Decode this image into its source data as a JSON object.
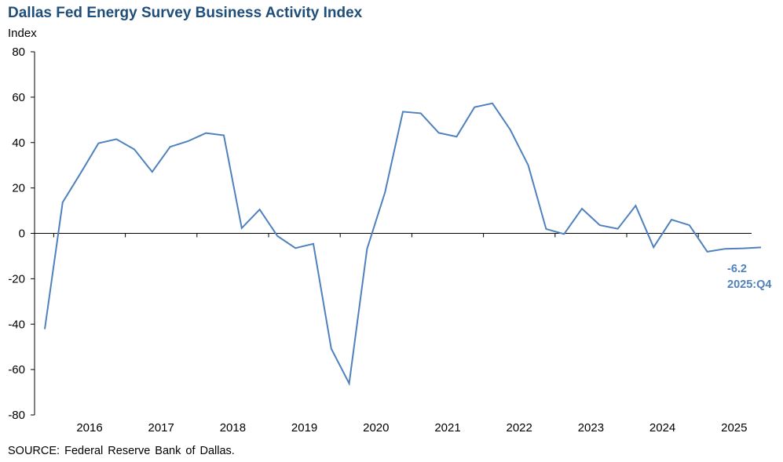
{
  "colors": {
    "title": "#1f4e79",
    "series": "#4f81bd",
    "axis": "#000000"
  },
  "chart_data": {
    "type": "line",
    "title": "Dallas Fed Energy Survey Business Activity Index",
    "ylabel": "Index",
    "xlabel": "",
    "ylim": [
      -80,
      80
    ],
    "yticks": [
      80,
      60,
      40,
      20,
      0,
      -20,
      -40,
      -60,
      -80
    ],
    "year_labels": [
      "2016",
      "2017",
      "2018",
      "2019",
      "2020",
      "2021",
      "2022",
      "2023",
      "2024",
      "2025"
    ],
    "grid": false,
    "series": [
      {
        "name": "Business Activity Index",
        "x": [
          "2015:Q4",
          "2016:Q1",
          "2016:Q2",
          "2016:Q3",
          "2016:Q4",
          "2017:Q1",
          "2017:Q2",
          "2017:Q3",
          "2017:Q4",
          "2018:Q1",
          "2018:Q2",
          "2018:Q3",
          "2018:Q4",
          "2019:Q1",
          "2019:Q2",
          "2019:Q3",
          "2019:Q4",
          "2020:Q1",
          "2020:Q2",
          "2020:Q3",
          "2020:Q4",
          "2021:Q1",
          "2021:Q2",
          "2021:Q3",
          "2021:Q4",
          "2022:Q1",
          "2022:Q2",
          "2022:Q3",
          "2022:Q4",
          "2023:Q1",
          "2023:Q2",
          "2023:Q3",
          "2023:Q4",
          "2024:Q1",
          "2024:Q2",
          "2024:Q3",
          "2024:Q4",
          "2025:Q1",
          "2025:Q2",
          "2025:Q3",
          "2025:Q4"
        ],
        "values": [
          -42.2,
          13.7,
          26.5,
          39.7,
          41.5,
          37.0,
          27.1,
          38.1,
          40.6,
          44.2,
          43.2,
          2.3,
          10.5,
          -1.2,
          -6.5,
          -4.6,
          -50.8,
          -66.1,
          -6.8,
          18.0,
          53.6,
          52.9,
          44.3,
          42.6,
          55.6,
          57.3,
          45.6,
          30.0,
          1.9,
          -0.3,
          10.9,
          3.6,
          2.0,
          12.2,
          -6.1,
          6.0,
          3.6,
          -8.1,
          -6.8,
          -6.6,
          -6.2
        ]
      }
    ],
    "annotations": [
      {
        "value_text": "-6.2",
        "period_text": "2025:Q4"
      }
    ]
  },
  "source_text": "SOURCE:  Federal Reserve  Bank of Dallas."
}
